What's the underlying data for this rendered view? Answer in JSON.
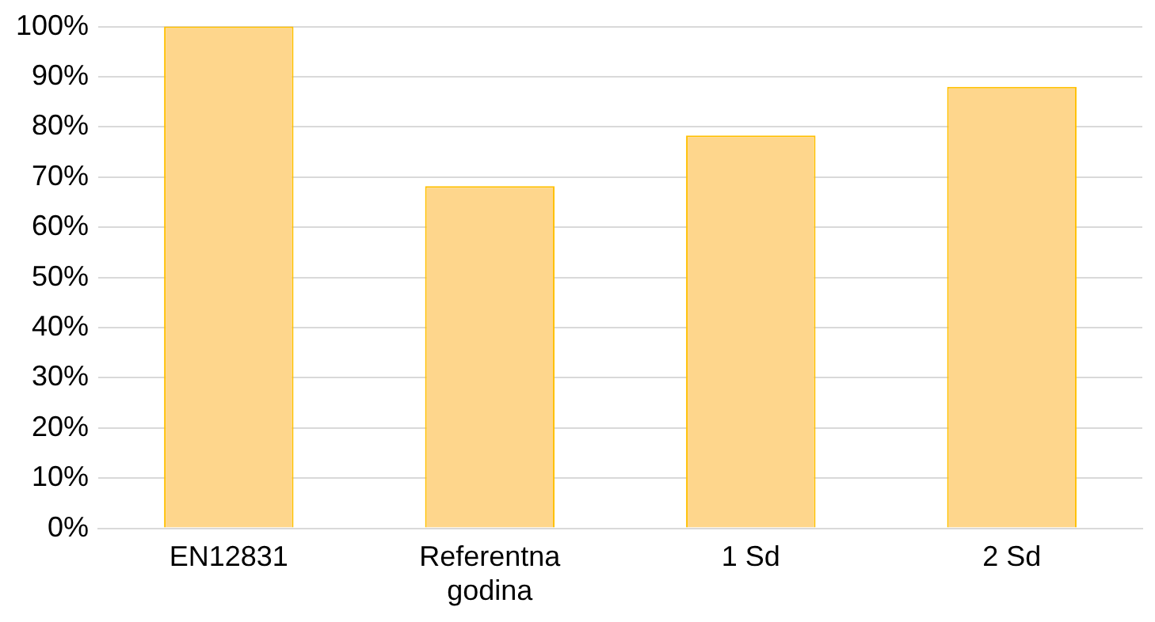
{
  "chart_data": {
    "type": "bar",
    "categories": [
      "EN12831",
      "Referentna godina",
      "1 Sd",
      "2 Sd"
    ],
    "values": [
      100,
      68.2,
      78.3,
      88
    ],
    "color": "#fed68c",
    "ylim": [
      0,
      100
    ],
    "yticks": [
      {
        "value": 0,
        "label": "0%"
      },
      {
        "value": 10,
        "label": "10%"
      },
      {
        "value": 20,
        "label": "20%"
      },
      {
        "value": 30,
        "label": "30%"
      },
      {
        "value": 40,
        "label": "40%"
      },
      {
        "value": 50,
        "label": "50%"
      },
      {
        "value": 60,
        "label": "60%"
      },
      {
        "value": 70,
        "label": "70%"
      },
      {
        "value": 80,
        "label": "80%"
      },
      {
        "value": 90,
        "label": "90%"
      },
      {
        "value": 100,
        "label": "100%"
      }
    ],
    "grid": "y"
  }
}
